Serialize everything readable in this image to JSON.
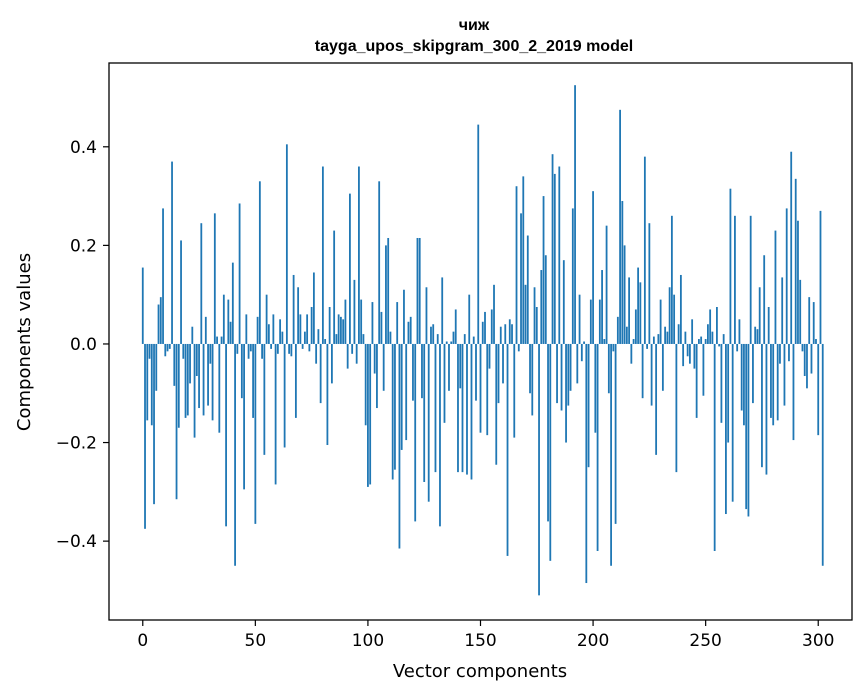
{
  "chart_data": {
    "type": "bar",
    "title": "чиж",
    "subtitle": "tayga_upos_skipgram_300_2_2019 model",
    "xlabel": "Vector components",
    "ylabel": "Components values",
    "xlim": [
      -15,
      315
    ],
    "ylim": [
      -0.56,
      0.57
    ],
    "xticks": [
      0,
      50,
      100,
      150,
      200,
      250,
      300
    ],
    "yticks": [
      -0.4,
      -0.2,
      0.0,
      0.2,
      0.4
    ],
    "ytick_labels": [
      "−0.4",
      "−0.2",
      "0.0",
      "0.2",
      "0.4"
    ],
    "xtick_labels": [
      "0",
      "50",
      "100",
      "150",
      "200",
      "250",
      "300"
    ],
    "bar_color": "#1f77b4",
    "values": [
      0.155,
      -0.375,
      -0.155,
      -0.03,
      -0.165,
      -0.325,
      -0.095,
      0.08,
      0.095,
      0.275,
      -0.025,
      -0.015,
      -0.01,
      0.37,
      -0.085,
      -0.315,
      -0.17,
      0.21,
      -0.03,
      -0.15,
      -0.145,
      -0.08,
      0.035,
      -0.19,
      -0.065,
      -0.13,
      0.245,
      -0.145,
      0.055,
      -0.125,
      -0.04,
      -0.155,
      0.265,
      0.015,
      -0.18,
      0.015,
      0.1,
      -0.37,
      0.09,
      0.045,
      0.165,
      -0.45,
      -0.02,
      0.285,
      -0.11,
      -0.295,
      0.06,
      -0.03,
      -0.015,
      -0.15,
      -0.365,
      0.055,
      0.33,
      -0.03,
      -0.225,
      0.1,
      0.04,
      -0.01,
      0.06,
      -0.285,
      -0.02,
      0.05,
      0.025,
      -0.21,
      0.405,
      -0.02,
      -0.025,
      0.14,
      -0.15,
      0.115,
      0.06,
      -0.01,
      0.025,
      0.06,
      -0.015,
      0.075,
      0.145,
      -0.04,
      0.03,
      -0.12,
      0.36,
      0.01,
      -0.205,
      0.075,
      -0.08,
      0.23,
      0.02,
      0.06,
      0.055,
      0.05,
      0.09,
      -0.05,
      0.305,
      -0.02,
      0.13,
      -0.04,
      0.36,
      0.09,
      0.02,
      -0.165,
      -0.29,
      -0.285,
      0.085,
      -0.06,
      -0.13,
      0.33,
      0.065,
      -0.095,
      0.2,
      0.215,
      0.025,
      -0.275,
      -0.255,
      0.085,
      -0.415,
      -0.215,
      0.11,
      -0.195,
      0.045,
      0.055,
      -0.115,
      -0.36,
      0.215,
      0.215,
      -0.11,
      -0.28,
      0.115,
      -0.32,
      0.035,
      0.04,
      -0.26,
      0.02,
      -0.37,
      0.135,
      -0.16,
      0.005,
      -0.095,
      0.005,
      0.025,
      0.07,
      -0.26,
      -0.09,
      -0.26,
      0.02,
      -0.265,
      0.1,
      -0.275,
      0.015,
      -0.115,
      0.445,
      -0.18,
      0.045,
      0.065,
      -0.185,
      -0.05,
      0.07,
      0.12,
      -0.245,
      -0.12,
      0.035,
      -0.08,
      0.04,
      -0.43,
      0.05,
      0.04,
      -0.19,
      0.32,
      -0.015,
      0.265,
      0.34,
      0.12,
      0.22,
      -0.1,
      -0.145,
      0.115,
      0.075,
      -0.51,
      0.15,
      0.3,
      0.18,
      -0.36,
      -0.44,
      0.385,
      0.345,
      -0.12,
      0.36,
      -0.135,
      0.17,
      -0.2,
      -0.125,
      -0.095,
      0.275,
      0.525,
      -0.08,
      0.1,
      -0.035,
      0.005,
      -0.485,
      -0.25,
      0.09,
      0.31,
      -0.18,
      -0.42,
      0.09,
      0.15,
      0.01,
      0.24,
      -0.1,
      -0.45,
      -0.015,
      -0.365,
      0.055,
      0.475,
      0.29,
      0.2,
      0.035,
      0.135,
      -0.04,
      0.01,
      0.07,
      0.155,
      0.125,
      -0.11,
      0.38,
      -0.01,
      0.245,
      -0.125,
      0.015,
      -0.225,
      0.02,
      0.09,
      -0.095,
      0.035,
      0.025,
      0.115,
      0.26,
      0.1,
      -0.26,
      0.04,
      0.14,
      -0.045,
      0.025,
      -0.025,
      -0.04,
      0.05,
      -0.05,
      -0.15,
      0.01,
      0.015,
      -0.105,
      0.01,
      0.04,
      0.07,
      0.025,
      -0.42,
      0.075,
      -0.005,
      -0.16,
      0.02,
      -0.345,
      -0.2,
      0.315,
      -0.32,
      0.26,
      -0.015,
      0.05,
      -0.135,
      -0.165,
      -0.335,
      -0.35,
      0.26,
      -0.12,
      0.035,
      0.03,
      0.115,
      -0.25,
      0.18,
      -0.265,
      0.075,
      -0.15,
      -0.165,
      0.23,
      -0.155,
      -0.04,
      0.135,
      -0.125,
      0.275,
      -0.035,
      0.39,
      -0.195,
      0.335,
      0.25,
      0.13,
      -0.015,
      -0.065,
      -0.09,
      0.095,
      -0.06,
      0.085,
      0.01,
      -0.185,
      0.27,
      -0.45
    ]
  }
}
